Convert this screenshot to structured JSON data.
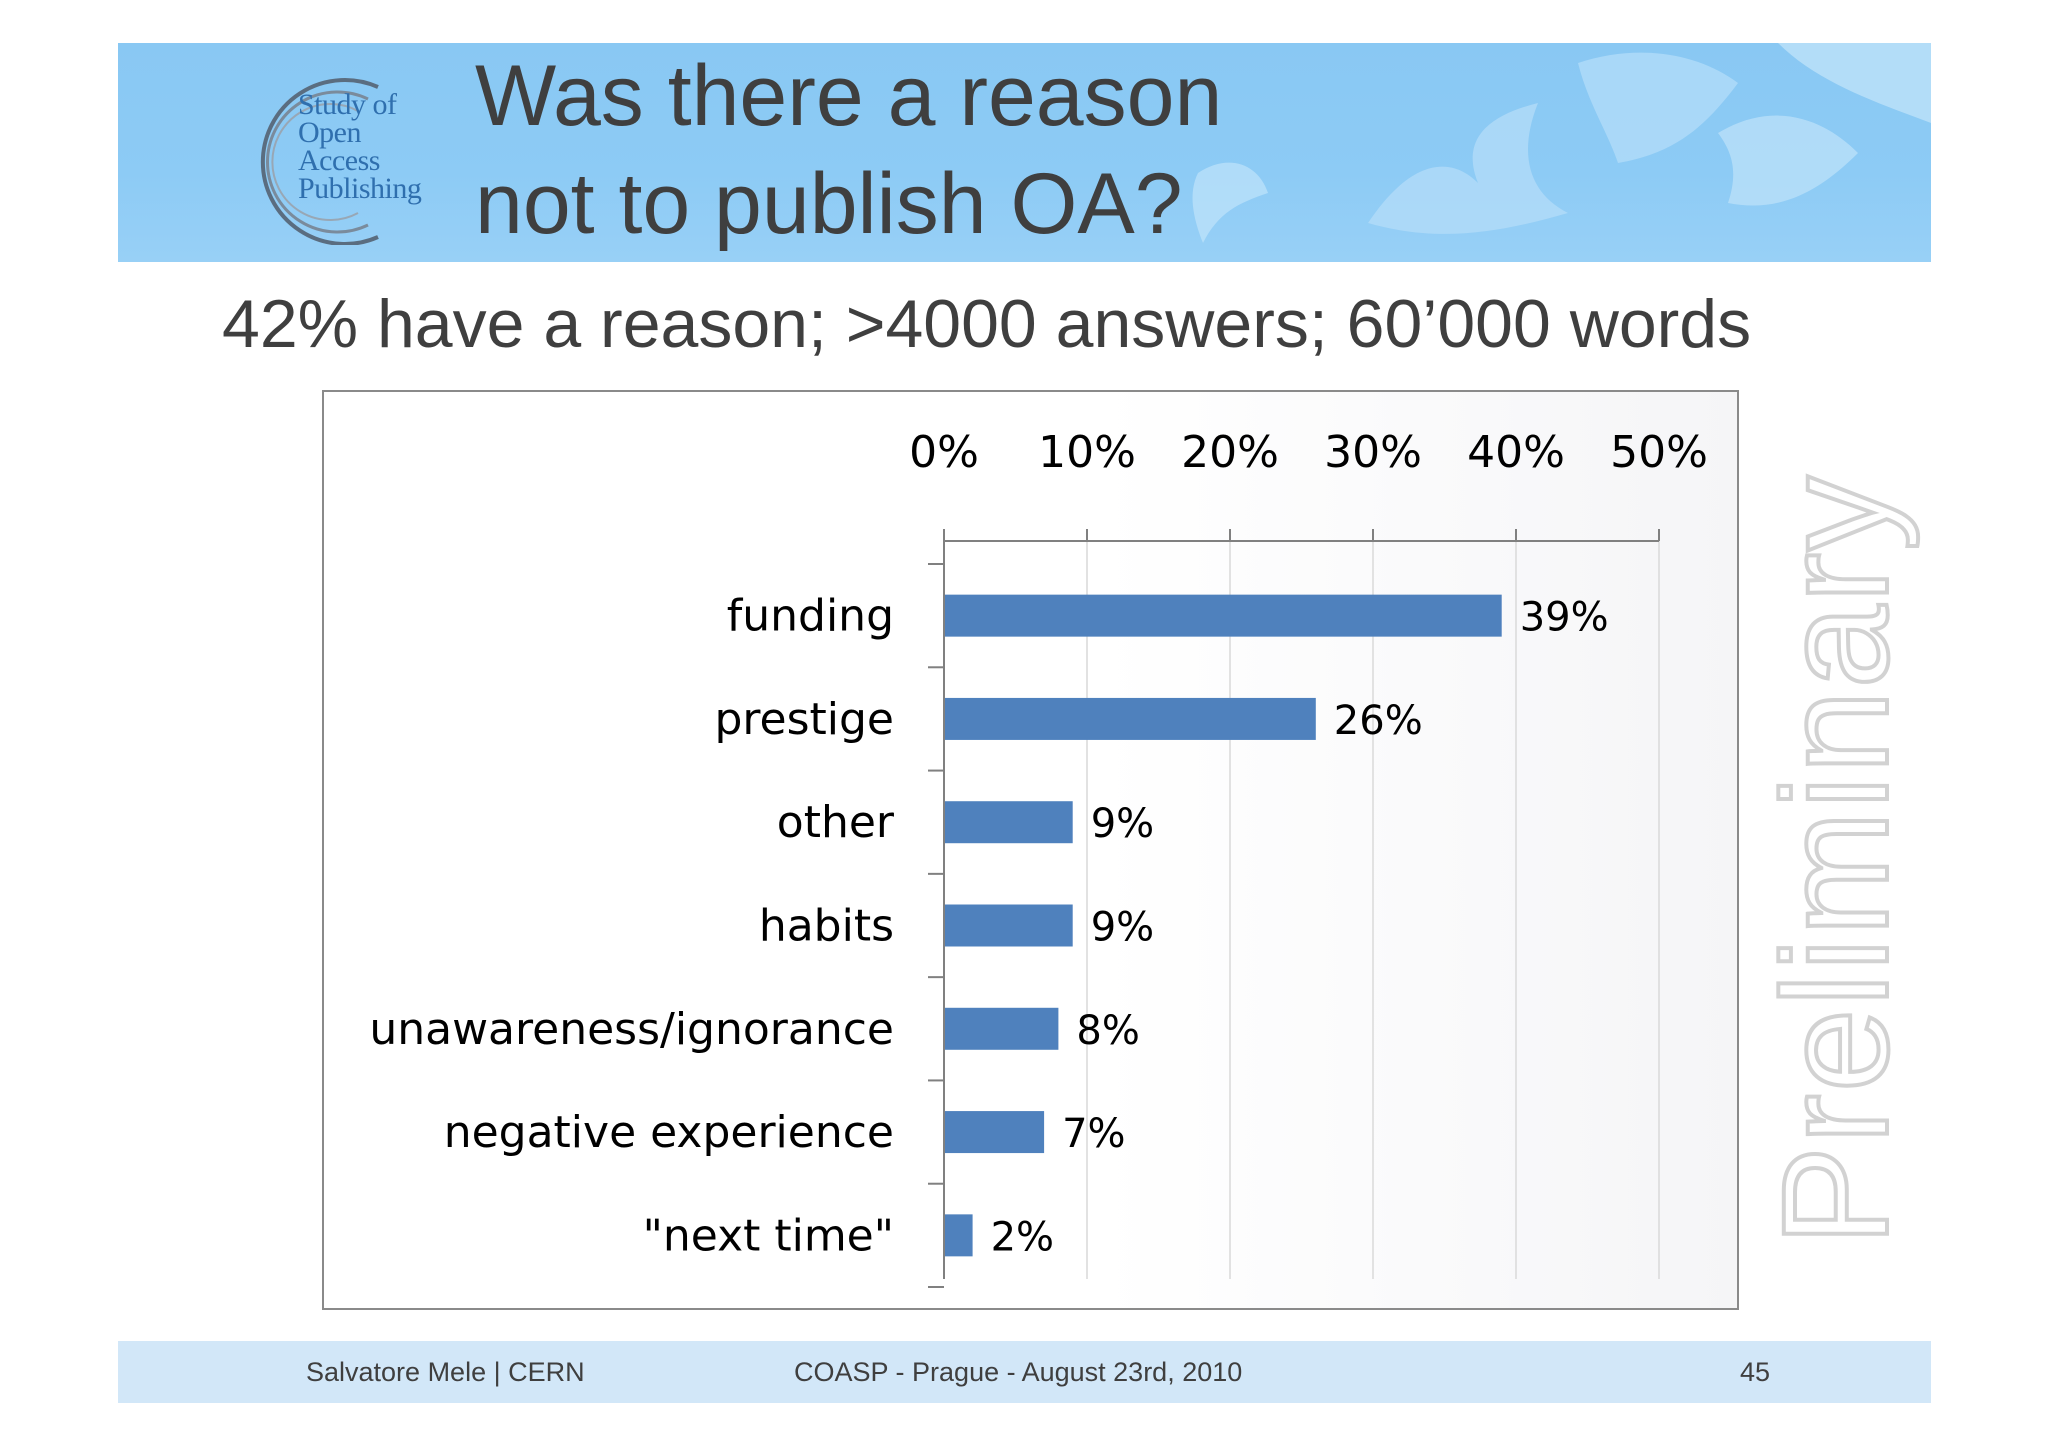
{
  "logo": {
    "lines": [
      "Study of",
      "Open",
      "Access",
      "Publishing"
    ]
  },
  "header": {
    "title_line_1": "Was there a reason",
    "title_line_2": "not to publish OA?"
  },
  "subtitle": "42% have a reason; >4000 answers; 60’000 words",
  "watermark": "Preliminary",
  "footer": {
    "author": "Salvatore Mele | CERN",
    "event": "COASP - Prague - August 23rd, 2010",
    "page_number": "45"
  },
  "colors": {
    "banner": "#8dcbf5",
    "bar": "#4f81bd",
    "footer": "#d2e7f8",
    "text": "#3f3f3f"
  },
  "chart_data": {
    "type": "bar",
    "orientation": "horizontal",
    "categories": [
      "funding",
      "prestige",
      "other",
      "habits",
      "unawareness/ignorance",
      "negative experience",
      "\"next time\""
    ],
    "values": [
      39,
      26,
      9,
      9,
      8,
      7,
      2
    ],
    "value_labels": [
      "39%",
      "26%",
      "9%",
      "9%",
      "8%",
      "7%",
      "2%"
    ],
    "xlim": [
      0,
      50
    ],
    "xticks": [
      "0%",
      "10%",
      "20%",
      "30%",
      "40%",
      "50%"
    ],
    "axis_position": "top",
    "grid": true,
    "legend": "none"
  }
}
